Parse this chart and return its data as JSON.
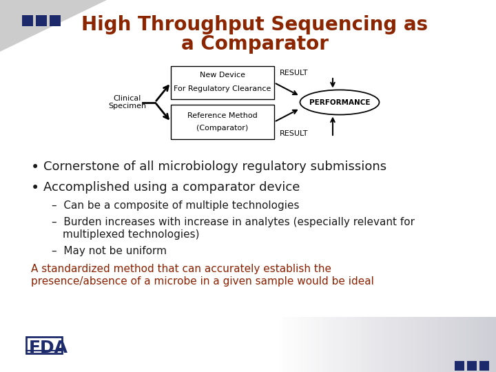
{
  "title_line1": "High Throughput Sequencing as",
  "title_line2": "a Comparator",
  "title_color": "#8B2500",
  "title_fontsize": 20,
  "bg_color": "#FFFFFF",
  "square_color": "#1C2A6B",
  "bullet1": "Cornerstone of all microbiology regulatory submissions",
  "bullet2": "Accomplished using a comparator device",
  "sub1": "Can be a composite of multiple technologies",
  "sub2a": "Burden increases with increase in analytes (especially relevant for",
  "sub2b": "multiplexed technologies)",
  "sub3": "May not be uniform",
  "red_text1": "A standardized method that can accurately establish the",
  "red_text2": "presence/absence of a microbe in a given sample would be ideal",
  "red_color": "#8B2000",
  "text_color": "#1A1A1A",
  "bullet_fontsize": 13,
  "sub_fontsize": 11,
  "red_fontsize": 11,
  "diag_box1_label1": "New Device",
  "diag_box1_label2": "For Regulatory Clearance",
  "diag_box2_label1": "Reference Method",
  "diag_box2_label2": "(Comparator)",
  "clinical_label": "Clinical\nSpecimen",
  "result_label": "RESULT",
  "performance_label": "PERFORMANCE"
}
